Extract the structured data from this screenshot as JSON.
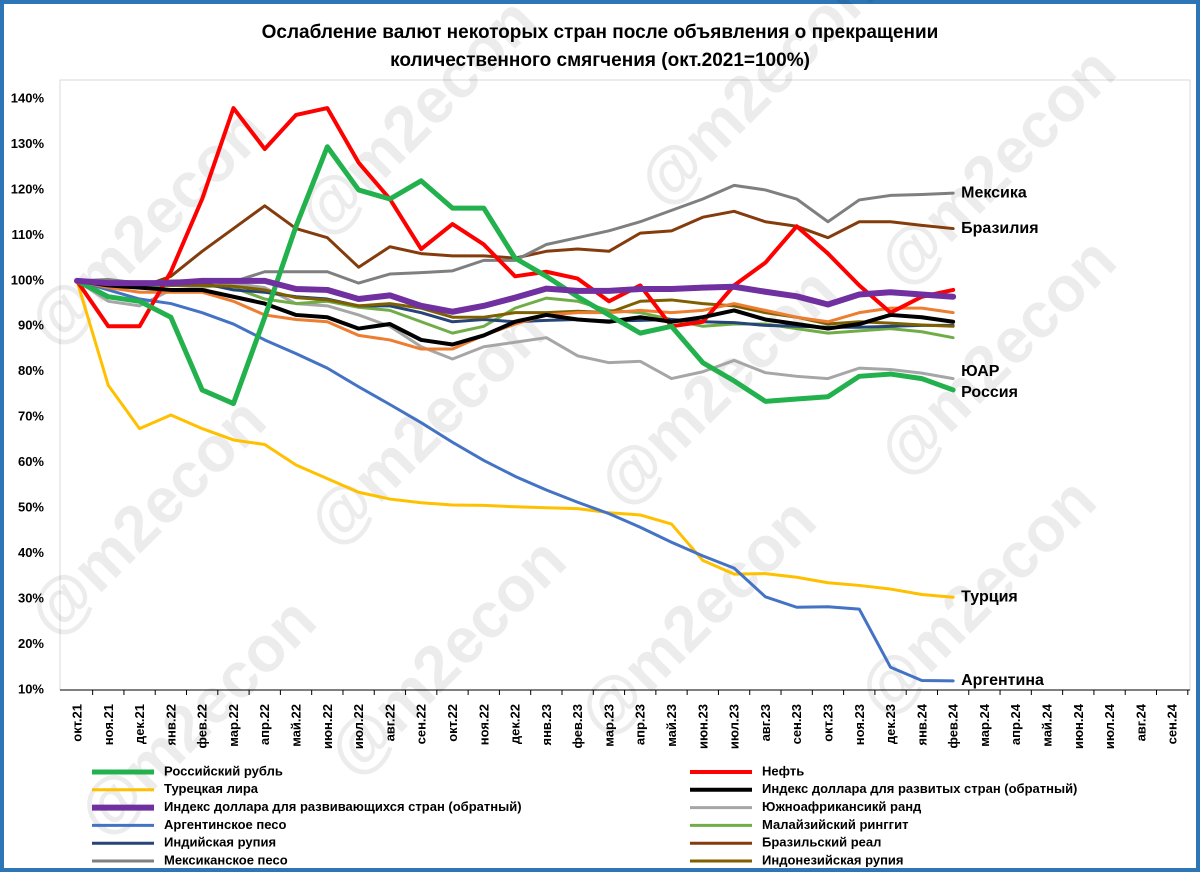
{
  "chart_data": {
    "type": "line",
    "title": [
      "Ослабление валют некоторых стран после объявления о прекращении",
      "количественного смягчения  (окт.2021=100%)"
    ],
    "watermark": "@m2econ",
    "categories": [
      "окт.21",
      "ноя.21",
      "дек.21",
      "янв.22",
      "фев.22",
      "мар.22",
      "апр.22",
      "май.22",
      "июн.22",
      "июл.22",
      "авг.22",
      "сен.22",
      "окт.22",
      "ноя.22",
      "дек.22",
      "янв.23",
      "фев.23",
      "мар.23",
      "апр.23",
      "май.23",
      "июн.23",
      "июл.23",
      "авг.23",
      "сен.23",
      "окт.23",
      "ноя.23",
      "дек.23",
      "янв.24",
      "фев.24",
      "мар.24",
      "апр.24",
      "май.24",
      "июн.24",
      "июл.24",
      "авг.24",
      "сен.24"
    ],
    "ylim": [
      10,
      140
    ],
    "yticks": [
      {
        "value": 10,
        "label": "10%"
      },
      {
        "value": 20,
        "label": "20%"
      },
      {
        "value": 30,
        "label": "30%"
      },
      {
        "value": 40,
        "label": "40%"
      },
      {
        "value": 50,
        "label": "50%"
      },
      {
        "value": 60,
        "label": "60%"
      },
      {
        "value": 70,
        "label": "70%"
      },
      {
        "value": 80,
        "label": "80%"
      },
      {
        "value": 90,
        "label": "90%"
      },
      {
        "value": 100,
        "label": "100%"
      },
      {
        "value": 110,
        "label": "110%"
      },
      {
        "value": 120,
        "label": "120%"
      },
      {
        "value": 130,
        "label": "130%"
      },
      {
        "value": 140,
        "label": "140%"
      }
    ],
    "grid": false,
    "series": [
      {
        "name": "Российский рубль",
        "color": "#22b14c",
        "line_width": 5,
        "end_label": "Россия",
        "values": [
          100,
          96.5,
          95.5,
          92,
          76,
          73,
          92,
          112,
          129.5,
          120,
          118,
          122,
          116,
          116,
          105,
          101,
          96.5,
          92.5,
          88.5,
          90,
          82,
          78,
          73.5,
          74,
          74.5,
          79,
          79.5,
          78.5,
          76,
          null,
          null,
          null,
          null,
          null,
          null,
          null
        ]
      },
      {
        "name": "Нефть",
        "color": "#ff0000",
        "line_width": 4,
        "values": [
          100,
          90,
          90,
          102,
          118,
          138,
          129,
          136.5,
          138,
          126,
          118,
          107,
          112.5,
          108,
          101,
          102,
          100.5,
          95.5,
          99,
          90,
          91,
          99,
          104,
          112,
          106,
          99,
          93,
          96.5,
          98,
          null,
          null,
          null,
          null,
          null,
          null,
          null
        ]
      },
      {
        "name": "Турецкая лира",
        "color": "#ffc000",
        "line_width": 3,
        "end_label": "Турция",
        "values": [
          100,
          77,
          67.5,
          70.5,
          67.5,
          65,
          64,
          59.5,
          56.5,
          53.5,
          52,
          51.2,
          50.7,
          50.6,
          50.3,
          50.1,
          49.9,
          49,
          48.5,
          46.5,
          38.5,
          35.5,
          35.6,
          34.8,
          33.6,
          33,
          32.2,
          31,
          30.4,
          null,
          null,
          null,
          null,
          null,
          null,
          null
        ]
      },
      {
        "name": "Индекс доллара для развитых стран (обратный)",
        "color": "#000000",
        "line_width": 4,
        "values": [
          100,
          99,
          98.5,
          98,
          98,
          96.5,
          95,
          92.5,
          92,
          89.5,
          90.5,
          87,
          86,
          88,
          91,
          92.5,
          91.5,
          91,
          92,
          91,
          92,
          93.5,
          91.5,
          90.5,
          89.5,
          90.5,
          92.5,
          92,
          91,
          null,
          null,
          null,
          null,
          null,
          null,
          null
        ]
      },
      {
        "name": "Индекс доллара для развивающихся стран (обратный)",
        "color": "#7030a0",
        "line_width": 6,
        "values": [
          100,
          99.5,
          99.5,
          99.5,
          100,
          100,
          100,
          98.2,
          98,
          96,
          96.8,
          94.5,
          93.2,
          94.5,
          96.3,
          98.3,
          97.8,
          97.8,
          98.2,
          98.2,
          98.5,
          98.7,
          97.6,
          96.6,
          94.8,
          97,
          97.5,
          97,
          96.5,
          null,
          null,
          null,
          null,
          null,
          null,
          null
        ]
      },
      {
        "name": "Южноафрикансикй ранд",
        "color": "#a6a6a6",
        "line_width": 3,
        "end_label": "ЮАР",
        "values": [
          100,
          95.5,
          94.5,
          98,
          98.5,
          99.5,
          98.5,
          95,
          94.5,
          92.5,
          90,
          85.5,
          82.8,
          85.5,
          86.5,
          87.5,
          83.5,
          82,
          82.3,
          78.5,
          80,
          82.5,
          79.8,
          79,
          78.5,
          80.8,
          80.5,
          79.7,
          78.5,
          null,
          null,
          null,
          null,
          null,
          null,
          null
        ]
      },
      {
        "name": "Аргентинское песо",
        "color": "#4472c4",
        "line_width": 3,
        "end_label": "Аргентина",
        "values": [
          100,
          98,
          96,
          95,
          93,
          90.5,
          87,
          84,
          80.8,
          76.7,
          72.8,
          68.8,
          64.5,
          60.5,
          57,
          54,
          51.3,
          48.8,
          45.8,
          42.5,
          39.5,
          36.8,
          30.5,
          28.2,
          28.3,
          27.8,
          15,
          12.1,
          12,
          null,
          null,
          null,
          null,
          null,
          null,
          null
        ]
      },
      {
        "name": "Малайзийский ринггит",
        "color": "#70ad47",
        "line_width": 3,
        "values": [
          100,
          99,
          98.5,
          99,
          99,
          98.5,
          96,
          95,
          95.5,
          94.2,
          93.5,
          91,
          88.5,
          90,
          94,
          96.2,
          95.5,
          93.5,
          93,
          91.5,
          90,
          90.5,
          90.5,
          89.5,
          88.5,
          89,
          89.5,
          88.8,
          87.5,
          null,
          null,
          null,
          null,
          null,
          null,
          null
        ]
      },
      {
        "name": "Индийская рупия",
        "color": "#264478",
        "line_width": 3,
        "values": [
          100,
          99.5,
          99,
          99.5,
          99.5,
          98,
          97.5,
          96.5,
          96,
          94.5,
          94.5,
          93,
          91,
          91.5,
          91,
          91.3,
          91.5,
          91.2,
          91.3,
          91.5,
          91,
          90.8,
          90.2,
          90,
          89.8,
          89.8,
          90,
          90.2,
          90.2,
          null,
          null,
          null,
          null,
          null,
          null,
          null
        ]
      },
      {
        "name": "Бразильский реал",
        "color": "#843c0c",
        "line_width": 3,
        "end_label": "Бразилия",
        "values": [
          100,
          99,
          98.5,
          101,
          106.5,
          111.5,
          116.5,
          111.5,
          109.5,
          103,
          107.5,
          106,
          105.5,
          105.5,
          105,
          106.5,
          107,
          106.5,
          110.5,
          111,
          114,
          115.3,
          113,
          112,
          109.5,
          113,
          113,
          112.2,
          111.5,
          null,
          null,
          null,
          null,
          null,
          null,
          null
        ]
      },
      {
        "name": "Мексиканское песо",
        "color": "#7f7f7f",
        "line_width": 3,
        "end_label": "Мексика",
        "values": [
          100,
          100.3,
          99.5,
          100,
          100,
          99.8,
          102,
          102,
          102,
          99.5,
          101.5,
          101.8,
          102.2,
          104.5,
          104.5,
          108,
          109.5,
          111,
          113,
          115.5,
          118,
          121,
          120,
          118,
          113,
          117.8,
          118.8,
          119,
          119.3,
          null,
          null,
          null,
          null,
          null,
          null,
          null
        ]
      },
      {
        "name": "Индонезийская рупия",
        "color": "#7f6000",
        "line_width": 3,
        "values": [
          100,
          99.5,
          99.3,
          99,
          99,
          98.8,
          98,
          96.3,
          95.8,
          94.5,
          95,
          94,
          92,
          92,
          93,
          93,
          93.3,
          93,
          95.5,
          95.8,
          95,
          94.5,
          93,
          92,
          90.5,
          91,
          90.7,
          90.3,
          90,
          null,
          null,
          null,
          null,
          null,
          null,
          null
        ]
      },
      {
        "color": "#ed7d31",
        "line_width": 3,
        "values": [
          100,
          98.5,
          97.5,
          97.5,
          97.5,
          95.5,
          92.5,
          91.5,
          91,
          88,
          87,
          85,
          85,
          88,
          90.5,
          92.5,
          93,
          93,
          93.5,
          93,
          93.5,
          95,
          93.5,
          92,
          91,
          93,
          94,
          94,
          93,
          null,
          null,
          null,
          null,
          null,
          null,
          null
        ]
      }
    ]
  }
}
